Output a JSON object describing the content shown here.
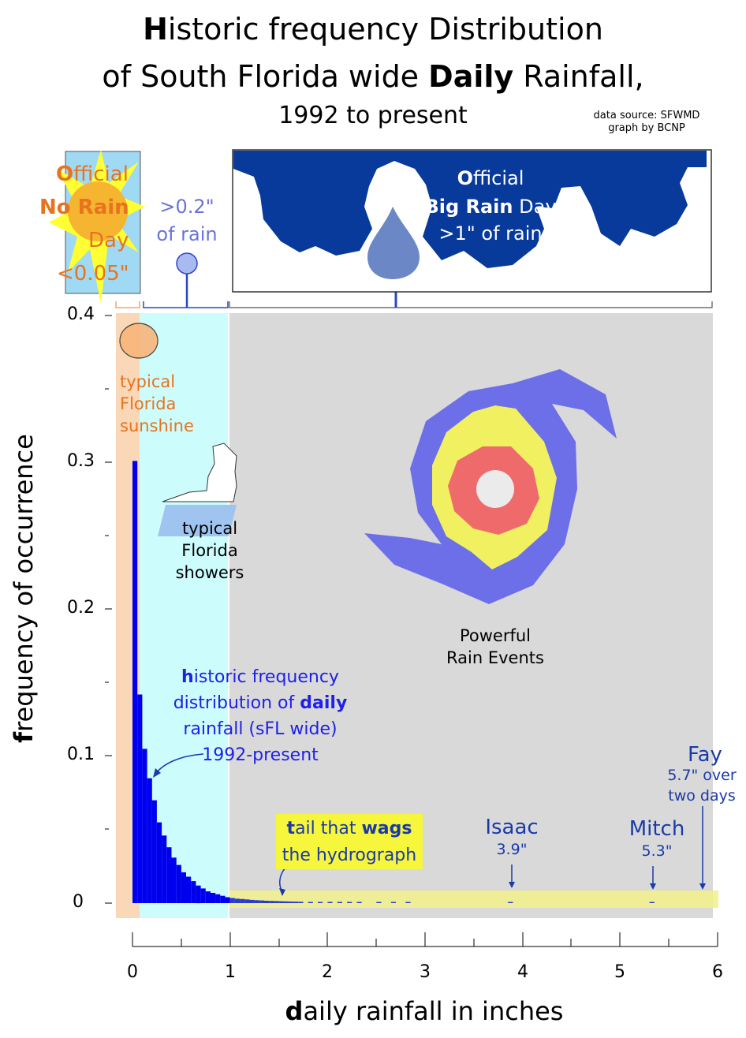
{
  "title": {
    "line1_bold": "H",
    "line1_rest": "istoric frequency Distribution",
    "line2_a": "of South Florida wide ",
    "line2_bold": "Daily",
    "line2_b": " Rainfall,",
    "line3": "1992 to present"
  },
  "source": {
    "line1": "data source: SFWMD",
    "line2": "graph by BCNP"
  },
  "no_rain": {
    "bold_o": "O",
    "w1": "fficial",
    "w2": "No Rain",
    "w3": "Day",
    "w4": "<0.05\""
  },
  "light_rain": {
    "w1": ">0.2\"",
    "w2": "of rain"
  },
  "big_rain": {
    "bold_o": "O",
    "w1": "fficial",
    "w2_bold": "Big Rain",
    "w2_rest": " Day",
    "w3": ">1\" of rain"
  },
  "zones": {
    "sunshine": [
      "typical",
      "Florida",
      "sunshine"
    ],
    "showers": [
      "typical",
      "Florida",
      "showers"
    ],
    "powerful": [
      "Powerful",
      "Rain Events"
    ]
  },
  "annotation": {
    "h": "h",
    "l1": "istoric frequency",
    "l2a": "distribution of ",
    "l2b": "daily",
    "l3": "rainfall (sFL wide)",
    "l4": "1992-present"
  },
  "tail": {
    "t": "t",
    "l1a": "ail that ",
    "l1b": "wags",
    "l2": "the hydrograph"
  },
  "storms": [
    {
      "name": "Isaac",
      "detail": "3.9\""
    },
    {
      "name": "Mitch",
      "detail": "5.3\""
    },
    {
      "name": "Fay",
      "detail": "5.7\" over",
      "detail2": "two days"
    }
  ],
  "axes": {
    "ylabel_bold": "f",
    "ylabel_rest": "requency of occurrence",
    "xlabel_bold": "d",
    "xlabel_rest": "aily rainfall in inches",
    "yticks": [
      "0",
      "0.1",
      "0.2",
      "0.3",
      "0.4"
    ],
    "xticks": [
      "0",
      "1",
      "2",
      "3",
      "4",
      "5",
      "6"
    ]
  },
  "colors": {
    "bars": "#0000ee",
    "grey_zone": "#d9d9d9",
    "cyan_zone": "#ccfcfc",
    "peach_zone": "#fad7b6",
    "cloud": "#073a9a",
    "tail_highlight": "#f0f07a"
  },
  "chart_data": {
    "type": "bar",
    "xlabel": "daily rainfall in inches",
    "ylabel": "frequency of occurrence",
    "xlim": [
      0,
      6
    ],
    "ylim": [
      0,
      0.4
    ],
    "bin_width": 0.05,
    "x": [
      0.0,
      0.05,
      0.1,
      0.15,
      0.2,
      0.25,
      0.3,
      0.35,
      0.4,
      0.45,
      0.5,
      0.55,
      0.6,
      0.65,
      0.7,
      0.75,
      0.8,
      0.85,
      0.9,
      0.95,
      1.0,
      1.05,
      1.1,
      1.15,
      1.2,
      1.25,
      1.3,
      1.35,
      1.4,
      1.45,
      1.5,
      1.55,
      1.6,
      1.65,
      1.7,
      1.8,
      1.9,
      2.0,
      2.1,
      2.2,
      2.3,
      2.5,
      2.65,
      2.8,
      3.85,
      5.3
    ],
    "values": [
      0.301,
      0.142,
      0.105,
      0.085,
      0.07,
      0.055,
      0.046,
      0.038,
      0.031,
      0.026,
      0.021,
      0.018,
      0.015,
      0.012,
      0.01,
      0.008,
      0.007,
      0.006,
      0.005,
      0.004,
      0.0035,
      0.003,
      0.0028,
      0.0025,
      0.0022,
      0.002,
      0.0018,
      0.0016,
      0.0015,
      0.0014,
      0.0013,
      0.0012,
      0.0011,
      0.001,
      0.0009,
      0.0008,
      0.0007,
      0.0006,
      0.0006,
      0.0005,
      0.0005,
      0.0004,
      0.0004,
      0.0003,
      0.0004,
      0.0004
    ],
    "zones": [
      {
        "label": "No Rain Day",
        "from": -0.05,
        "to": 0.05
      },
      {
        "label": "typical Florida showers",
        "from": 0.05,
        "to": 1.0
      },
      {
        "label": "Big Rain Day",
        "from": 1.0,
        "to": 5.95
      }
    ]
  }
}
